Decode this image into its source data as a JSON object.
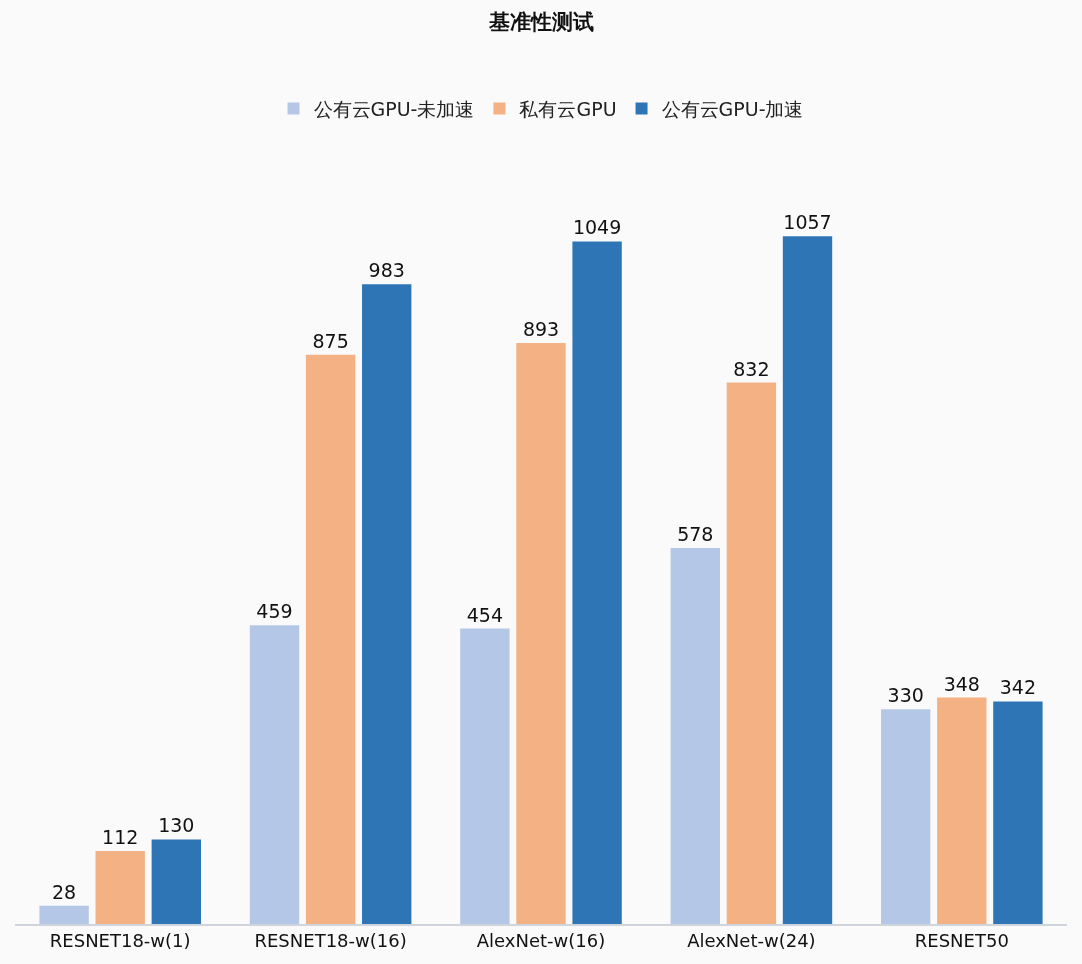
{
  "chart_data": {
    "type": "bar",
    "title": "基准性测试",
    "categories": [
      "RESNET18-w(1)",
      "RESNET18-w(16)",
      "AlexNet-w(16)",
      "AlexNet-w(24)",
      "RESNET50"
    ],
    "series": [
      {
        "name": "公有云GPU-未加速",
        "color": "#b4c7e7",
        "values": [
          28,
          459,
          454,
          578,
          330
        ]
      },
      {
        "name": "私有云GPU",
        "color": "#f4b183",
        "values": [
          112,
          875,
          893,
          832,
          348
        ]
      },
      {
        "name": "公有云GPU-加速",
        "color": "#2e75b6",
        "values": [
          130,
          983,
          1049,
          1057,
          342
        ]
      }
    ],
    "data_labels": true,
    "legend": "top",
    "grid": false,
    "tick_labels": "x"
  }
}
